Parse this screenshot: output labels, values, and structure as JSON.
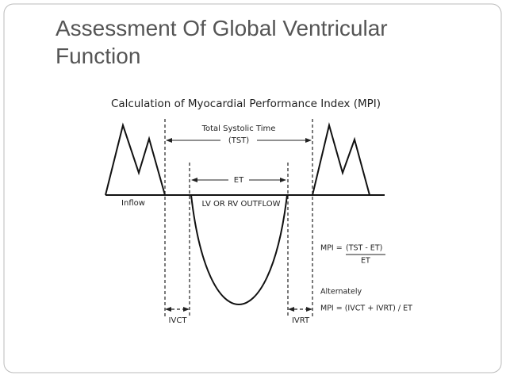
{
  "slide": {
    "title": "Assessment Of Global Ventricular Function"
  },
  "diagram": {
    "title": "Calculation of Myocardial Performance Index (MPI)",
    "tst_label": "Total Systolic Time",
    "tst_abbr": "(TST)",
    "et_label": "ET",
    "inflow_label": "Inflow",
    "outflow_label": "LV OR RV OUTFLOW",
    "mpi_formula": {
      "lhs": "MPI =",
      "numerator": "(TST - ET)",
      "denominator": "ET"
    },
    "alternately": "Alternately",
    "mpi_alt": "MPI = (IVCT + IVRT) / ET",
    "ivct_label": "IVCT",
    "ivrt_label": "IVRT"
  }
}
